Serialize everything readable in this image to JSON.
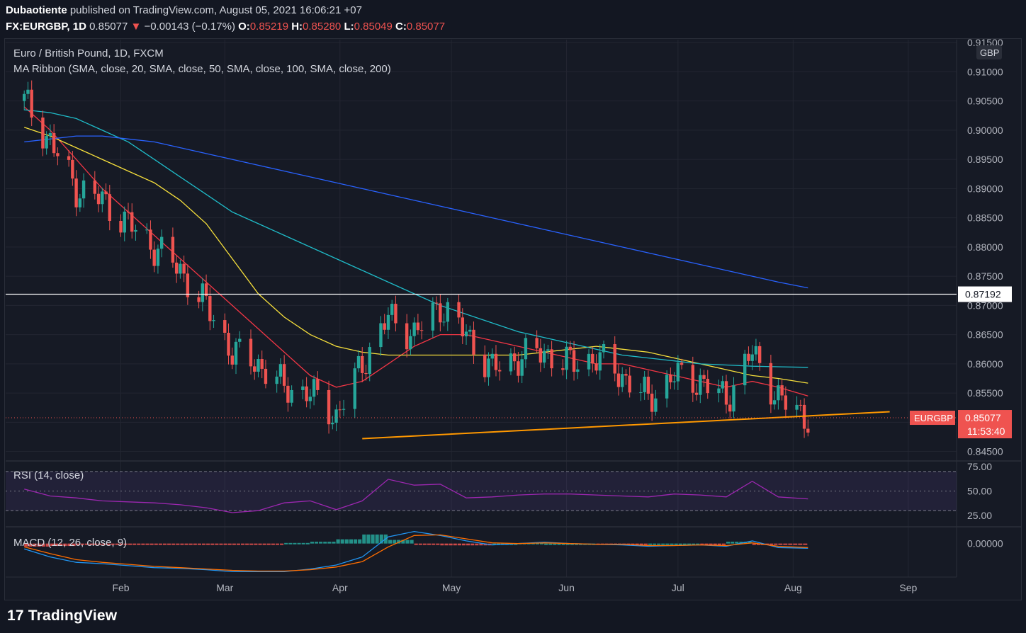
{
  "header": {
    "author": "Dubaotiente",
    "published": " published on TradingView.com, August 05, 2021 16:06:21 +07",
    "symbol": "FX:EURGBP, 1D",
    "last": "0.85077",
    "change_arrow": "▼",
    "change": "−0.00143 (−0.17%)",
    "o_label": "O:",
    "o": "0.85219",
    "h_label": "H:",
    "h": "0.85280",
    "l_label": "L:",
    "l": "0.85049",
    "c_label": "C:",
    "c": "0.85077"
  },
  "legend": {
    "title": "Euro / British Pound, 1D, FXCM",
    "ma_ribbon": "MA Ribbon (SMA, close, 20, SMA, close, 50, SMA, close, 100, SMA, close, 200)",
    "rsi": "RSI (14, close)",
    "macd": "MACD (12, 26, close, 9)"
  },
  "price_axis": {
    "currency": "GBP",
    "ticks": [
      "0.91500",
      "0.91000",
      "0.90500",
      "0.90000",
      "0.89500",
      "0.89000",
      "0.88500",
      "0.88000",
      "0.87500",
      "0.87000",
      "0.86500",
      "0.86000",
      "0.85500",
      "0.85000",
      "0.84500"
    ],
    "hline_label": "0.87192",
    "symbol_tag": "EURGBP",
    "price_tag": "0.85077",
    "countdown": "11:53:40"
  },
  "rsi_axis": {
    "ticks": [
      "75.00",
      "50.00",
      "25.00"
    ]
  },
  "macd_axis": {
    "ticks": [
      "0.00000"
    ]
  },
  "time_axis": {
    "labels": [
      "Feb",
      "Mar",
      "Apr",
      "May",
      "Jun",
      "Jul",
      "Aug",
      "Sep"
    ]
  },
  "brand": {
    "mark": "17",
    "name": "TradingView"
  },
  "colors": {
    "up": "#26a69a",
    "down": "#ef5350",
    "sma20": "#f23645",
    "sma50": "#f7e03c",
    "sma100": "#1fbbc8",
    "sma200": "#2962ff",
    "trendline": "#ff9800",
    "hline": "#ffffff",
    "rsi": "#9c27b0",
    "macd": "#2196f3",
    "signal": "#ff6d00"
  },
  "chart_data": {
    "type": "candlestick",
    "title": "Euro / British Pound, 1D, FXCM",
    "ylim": [
      0.8435,
      0.9155
    ],
    "x": [
      "2021-01-06",
      "2021-01-13",
      "2021-01-20",
      "2021-01-27",
      "2021-02-03",
      "2021-02-10",
      "2021-02-17",
      "2021-02-24",
      "2021-03-03",
      "2021-03-10",
      "2021-03-17",
      "2021-03-24",
      "2021-03-31",
      "2021-04-07",
      "2021-04-14",
      "2021-04-21",
      "2021-04-28",
      "2021-05-05",
      "2021-05-12",
      "2021-05-19",
      "2021-05-26",
      "2021-06-02",
      "2021-06-09",
      "2021-06-16",
      "2021-06-23",
      "2021-06-30",
      "2021-07-07",
      "2021-07-14",
      "2021-07-21",
      "2021-07-28",
      "2021-08-05"
    ],
    "series": [
      {
        "name": "EURGBP close",
        "values": [
          0.905,
          0.898,
          0.89,
          0.888,
          0.884,
          0.88,
          0.876,
          0.87,
          0.862,
          0.86,
          0.856,
          0.855,
          0.851,
          0.86,
          0.868,
          0.865,
          0.87,
          0.865,
          0.859,
          0.861,
          0.862,
          0.86,
          0.861,
          0.858,
          0.854,
          0.858,
          0.857,
          0.854,
          0.862,
          0.854,
          0.8508
        ]
      },
      {
        "name": "SMA 20",
        "values": [
          0.904,
          0.9,
          0.895,
          0.89,
          0.886,
          0.882,
          0.878,
          0.874,
          0.87,
          0.866,
          0.862,
          0.858,
          0.856,
          0.857,
          0.86,
          0.863,
          0.865,
          0.865,
          0.864,
          0.863,
          0.862,
          0.861,
          0.86,
          0.86,
          0.859,
          0.858,
          0.857,
          0.856,
          0.857,
          0.856,
          0.8545
        ]
      },
      {
        "name": "SMA 50",
        "values": [
          0.9005,
          0.899,
          0.897,
          0.895,
          0.893,
          0.891,
          0.888,
          0.884,
          0.878,
          0.872,
          0.868,
          0.865,
          0.863,
          0.862,
          0.8615,
          0.8615,
          0.8615,
          0.8615,
          0.8615,
          0.8615,
          0.862,
          0.8625,
          0.863,
          0.8625,
          0.862,
          0.861,
          0.86,
          0.859,
          0.858,
          0.8575,
          0.8567
        ]
      },
      {
        "name": "SMA 100",
        "values": [
          0.9035,
          0.903,
          0.902,
          0.9,
          0.898,
          0.895,
          0.892,
          0.889,
          0.886,
          0.884,
          0.882,
          0.88,
          0.878,
          0.876,
          0.874,
          0.872,
          0.87,
          0.8685,
          0.867,
          0.8655,
          0.8645,
          0.8635,
          0.8625,
          0.8615,
          0.861,
          0.8605,
          0.86,
          0.8598,
          0.8596,
          0.8595,
          0.8594
        ]
      },
      {
        "name": "SMA 200",
        "values": [
          0.898,
          0.8985,
          0.899,
          0.899,
          0.8985,
          0.898,
          0.897,
          0.896,
          0.895,
          0.894,
          0.893,
          0.892,
          0.891,
          0.89,
          0.889,
          0.888,
          0.887,
          0.886,
          0.885,
          0.884,
          0.883,
          0.882,
          0.881,
          0.88,
          0.879,
          0.878,
          0.877,
          0.876,
          0.875,
          0.874,
          0.873
        ]
      }
    ],
    "horizontal_line": 0.87192,
    "trendline": [
      {
        "x": "2021-04-07",
        "y": 0.8472
      },
      {
        "x": "2021-08-27",
        "y": 0.8518
      }
    ],
    "last_price": 0.85077,
    "rsi": {
      "ylim": [
        15,
        80
      ],
      "levels": [
        70,
        50,
        30
      ],
      "values": [
        52,
        45,
        43,
        40,
        39,
        38,
        36,
        33,
        28,
        30,
        38,
        40,
        31,
        40,
        62,
        56,
        57,
        43,
        44,
        46,
        47,
        47,
        46,
        45,
        44,
        47,
        46,
        44,
        60,
        44,
        42
      ]
    },
    "macd": {
      "macd": [
        -0.0008,
        -0.002,
        -0.0028,
        -0.003,
        -0.0033,
        -0.0036,
        -0.0037,
        -0.0039,
        -0.0042,
        -0.0042,
        -0.0042,
        -0.0038,
        -0.0032,
        -0.002,
        0.001,
        0.0018,
        0.0012,
        0.0004,
        -0.0002,
        0.0,
        0.0002,
        0.0,
        -0.0001,
        -0.0002,
        -0.0004,
        -0.0003,
        -0.0002,
        -0.0004,
        0.0004,
        -0.0006,
        -0.0007
      ],
      "signal": [
        -0.0005,
        -0.0015,
        -0.0024,
        -0.0028,
        -0.0031,
        -0.0034,
        -0.0036,
        -0.0038,
        -0.004,
        -0.0041,
        -0.0041,
        -0.0039,
        -0.0035,
        -0.0027,
        -0.0005,
        0.0012,
        0.0013,
        0.0007,
        0.0001,
        0.0,
        0.0001,
        0.0,
        -0.0001,
        -0.0001,
        -0.0003,
        -0.0003,
        -0.0002,
        -0.0003,
        0.0001,
        -0.0004,
        -0.0006
      ]
    }
  }
}
